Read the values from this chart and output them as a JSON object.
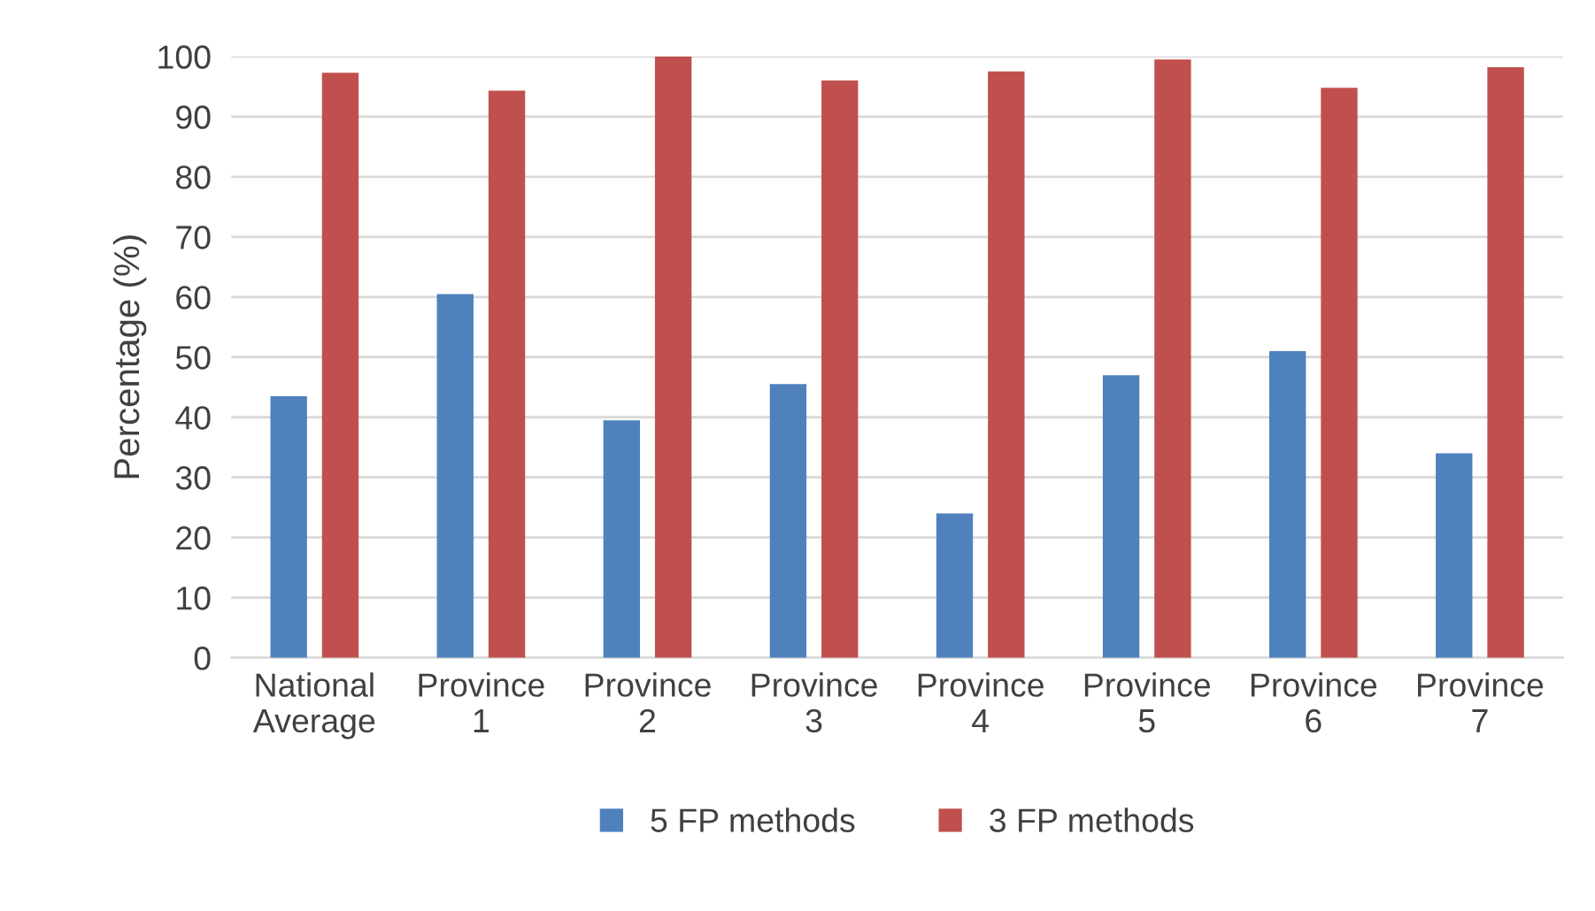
{
  "chart_data": {
    "type": "bar",
    "ylabel": "Percentage (%)",
    "categories": [
      "National\nAverage",
      "Province\n1",
      "Province\n2",
      "Province\n3",
      "Province\n4",
      "Province\n5",
      "Province\n6",
      "Province\n7"
    ],
    "series": [
      {
        "name": "5 FP methods",
        "color": "#4f81bd",
        "values": [
          43.5,
          60.5,
          39.5,
          45.5,
          24,
          47,
          51,
          34
        ]
      },
      {
        "name": "3 FP methods",
        "color": "#c0504d",
        "values": [
          97.3,
          94.3,
          100,
          96,
          97.5,
          99.5,
          94.8,
          98.2
        ]
      }
    ],
    "ylim": [
      0,
      100
    ],
    "yticks": [
      0,
      10,
      20,
      30,
      40,
      50,
      60,
      70,
      80,
      90,
      100
    ],
    "grid": "y",
    "legend": "bottom"
  }
}
